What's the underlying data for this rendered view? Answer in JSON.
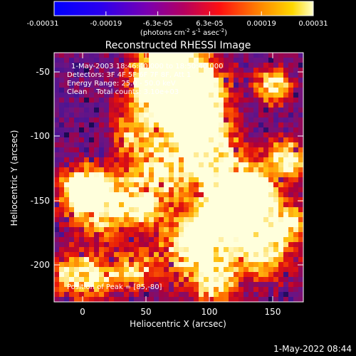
{
  "colorbar": {
    "ticks": [
      "-0.00031",
      "-0.00019",
      "-6.3e-05",
      "6.3e-05",
      "0.00019",
      "0.00031"
    ],
    "unit_main": "(photons cm",
    "unit_sup1": "-2",
    "unit_mid1": " s",
    "unit_sup2": "-1",
    "unit_mid2": " asec",
    "unit_sup3": "-2",
    "unit_end": ")"
  },
  "plot": {
    "title": "Reconstructed RHESSI Image",
    "xlabel": "Heliocentric X (arcsec)",
    "ylabel": "Heliocentric Y (arcsec)",
    "xticks": [
      "0",
      "50",
      "100",
      "150"
    ],
    "yticks": [
      "-50",
      "-100",
      "-150",
      "-200"
    ]
  },
  "annotations": {
    "time_range": "1-May-2003 18:46:40.000 to 18:50:40.000",
    "detectors": "Detectors: 3F 4F 5F 6F 7F 8F, Att 1",
    "energy": "Energy Range: 25.0 - 50.0 keV",
    "clean": "Clean    Total counts: 3.10e+03",
    "peak": "Position of Peak = [85,-80]"
  },
  "footer": {
    "timestamp": "1-May-2022 08:44"
  }
}
